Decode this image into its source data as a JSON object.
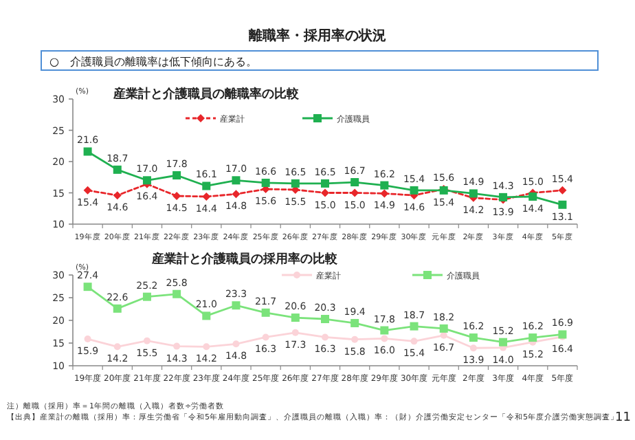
{
  "chart_data": [
    {
      "type": "line",
      "title": "産業計と介護職員の離職率の比較",
      "ylabel": "(%)",
      "annotations": [
        "離職率・採用率の状況",
        "○　介護職員の離職率は低下傾向にある。"
      ],
      "categories": [
        "19年度",
        "20年度",
        "21年度",
        "22年度",
        "23年度",
        "24年度",
        "25年度",
        "26年度",
        "27年度",
        "28年度",
        "29年度",
        "30年度",
        "元年度",
        "2年度",
        "3年度",
        "4年度",
        "5年度"
      ],
      "series": [
        {
          "name": "産業計",
          "color": "#e8262a",
          "marker": "diamond",
          "line_style": "dashed",
          "values": [
            15.4,
            14.6,
            16.4,
            14.5,
            14.4,
            14.8,
            15.6,
            15.5,
            15.0,
            15.0,
            14.9,
            14.6,
            15.6,
            14.2,
            13.9,
            15.0,
            15.4
          ],
          "value_labels": [
            "15.4",
            "14.6",
            "16.4",
            "14.5",
            "14.4",
            "14.8",
            "15.6",
            "15.5",
            "15.0",
            "15.0",
            "14.9",
            "14.6",
            "15.6",
            "14.2",
            "13.9",
            "15.0",
            "15.4"
          ]
        },
        {
          "name": "介護職員",
          "color": "#1fb050",
          "marker": "square",
          "line_style": "solid",
          "values": [
            21.6,
            18.7,
            17.0,
            17.8,
            16.1,
            17.0,
            16.6,
            16.5,
            16.5,
            16.7,
            16.2,
            15.4,
            15.4,
            14.9,
            14.3,
            14.4,
            13.1
          ],
          "value_labels": [
            "21.6",
            "18.7",
            "17.0",
            "17.8",
            "16.1",
            "17.0",
            "16.6",
            "16.5",
            "16.5",
            "16.7",
            "16.2",
            "15.4",
            "15.4",
            "14.9",
            "14.3",
            "14.4",
            "13.1"
          ]
        }
      ],
      "ylim": [
        10,
        30
      ],
      "yticks": [
        10,
        15,
        20,
        25,
        30
      ],
      "grid": false,
      "legend": "top"
    },
    {
      "type": "line",
      "title": "産業計と介護職員の採用率の比較",
      "ylabel": "(%)",
      "annotations": [
        "注）離職（採用）率＝1年間の離職（入職）者数÷労働者数",
        "【出典】産業計の離職（採用）率：厚生労働省「令和5年雇用動向調査」、介護職員の離職（入職）率：（財）介護労働安定センター「令和5年度介護労働実態調査」",
        "11"
      ],
      "categories": [
        "19年度",
        "20年度",
        "21年度",
        "22年度",
        "23年度",
        "24年度",
        "25年度",
        "26年度",
        "27年度",
        "28年度",
        "29年度",
        "30年度",
        "元年度",
        "2年度",
        "3年度",
        "4年度",
        "5年度"
      ],
      "series": [
        {
          "name": "産業計",
          "color": "#fbd3d8",
          "marker": "circle",
          "line_style": "solid",
          "values": [
            15.9,
            14.2,
            15.5,
            14.3,
            14.2,
            14.8,
            16.3,
            17.3,
            16.3,
            15.8,
            16.0,
            15.4,
            16.7,
            13.9,
            14.0,
            15.2,
            16.4
          ],
          "value_labels": [
            "15.9",
            "14.2",
            "15.5",
            "14.3",
            "14.2",
            "14.8",
            "16.3",
            "17.3",
            "16.3",
            "15.8",
            "16.0",
            "15.4",
            "16.7",
            "13.9",
            "14.0",
            "15.2",
            "16.4"
          ]
        },
        {
          "name": "介護職員",
          "color": "#7be37b",
          "marker": "square",
          "line_style": "solid",
          "values": [
            27.4,
            22.6,
            25.2,
            25.8,
            21.0,
            23.3,
            21.7,
            20.6,
            20.3,
            19.4,
            17.8,
            18.7,
            18.2,
            16.2,
            15.2,
            16.2,
            16.9
          ],
          "value_labels": [
            "27.4",
            "22.6",
            "25.2",
            "25.8",
            "21.0",
            "23.3",
            "21.7",
            "20.6",
            "20.3",
            "19.4",
            "17.8",
            "18.7",
            "18.2",
            "16.2",
            "15.2",
            "16.2",
            "16.9"
          ]
        }
      ],
      "ylim": [
        10,
        30
      ],
      "yticks": [
        10,
        15,
        20,
        25,
        30
      ],
      "grid": false,
      "legend": "top"
    }
  ]
}
